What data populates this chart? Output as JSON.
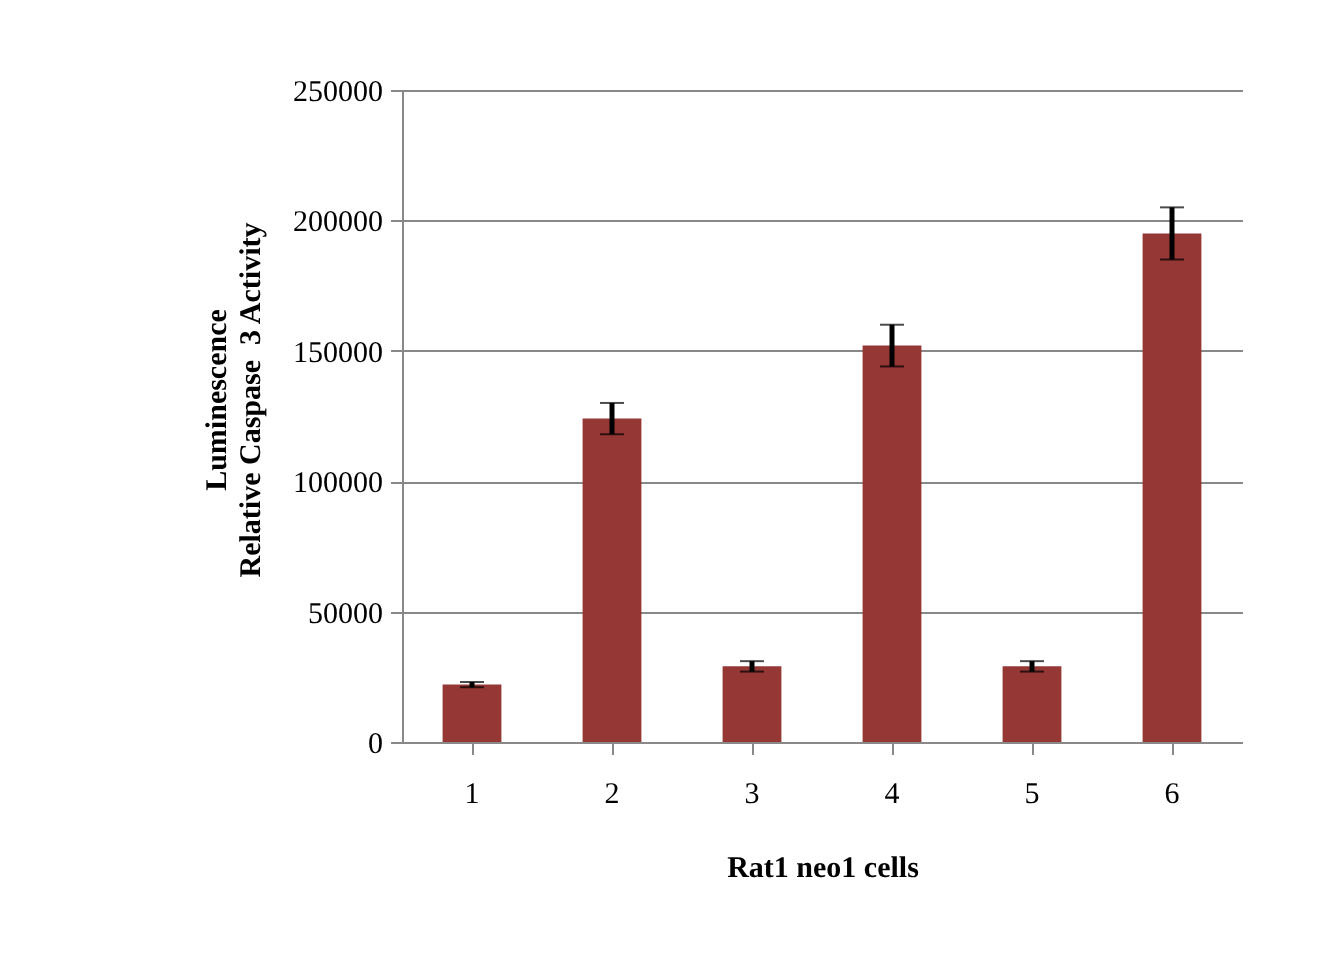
{
  "chart_data": {
    "type": "bar",
    "xlabel": "Rat1 neo1 cells",
    "ylabel": "Luminescence\nRelative Caspase  3 Activity",
    "categories": [
      "1",
      "2",
      "3",
      "4",
      "5",
      "6"
    ],
    "values": [
      22000,
      124000,
      29000,
      152000,
      29000,
      195000
    ],
    "errors": [
      1000,
      6000,
      2000,
      8000,
      2000,
      10000
    ],
    "color": "#953735",
    "ylim": [
      0,
      250000
    ],
    "yticks": [
      0,
      50000,
      100000,
      150000,
      200000,
      250000
    ],
    "grid": "y"
  }
}
